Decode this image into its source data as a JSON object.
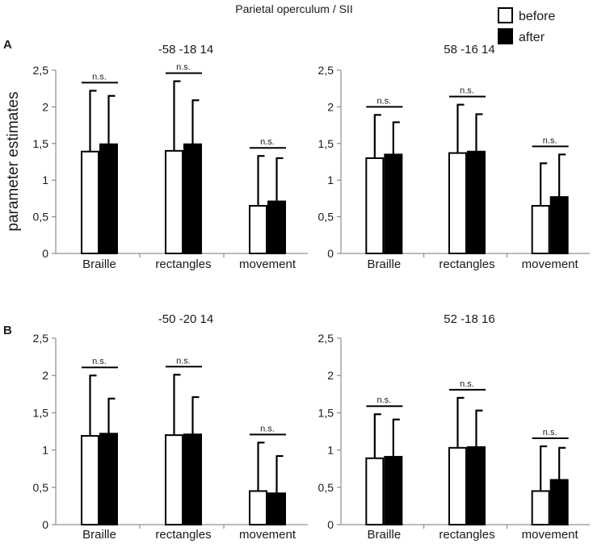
{
  "figure_title": "Parietal operculum / SII",
  "y_axis_label": "parameter estimates",
  "legend": [
    {
      "name": "before",
      "fill": "#ffffff"
    },
    {
      "name": "after",
      "fill": "#000000"
    }
  ],
  "panel_labels": [
    "A",
    "B"
  ],
  "colors": {
    "before": "#ffffff",
    "after": "#000000",
    "stroke": "#000000",
    "axis": "#777777"
  },
  "chart_data": [
    {
      "type": "bar",
      "panel": "A",
      "title": "-58 -18 14",
      "categories": [
        "Braille",
        "rectangles",
        "movement"
      ],
      "series": [
        {
          "name": "before",
          "values": [
            1.39,
            1.4,
            0.65
          ],
          "error_upper": [
            2.22,
            2.35,
            1.33
          ]
        },
        {
          "name": "after",
          "values": [
            1.49,
            1.49,
            0.71
          ],
          "error_upper": [
            2.15,
            2.09,
            1.3
          ]
        }
      ],
      "significance": [
        "n.s.",
        "n.s.",
        "n.s."
      ],
      "yticks": [
        "0",
        "0,5",
        "1",
        "1,5",
        "2",
        "2,5"
      ],
      "ylim": [
        0,
        2.5
      ]
    },
    {
      "type": "bar",
      "panel": "A",
      "title": "58 -16 14",
      "categories": [
        "Braille",
        "rectangles",
        "movement"
      ],
      "series": [
        {
          "name": "before",
          "values": [
            1.3,
            1.37,
            0.65
          ],
          "error_upper": [
            1.89,
            2.03,
            1.23
          ]
        },
        {
          "name": "after",
          "values": [
            1.35,
            1.39,
            0.77
          ],
          "error_upper": [
            1.79,
            1.9,
            1.35
          ]
        }
      ],
      "significance": [
        "n.s.",
        "n.s.",
        "n.s."
      ],
      "yticks": [
        "0",
        "0,5",
        "1",
        "1,5",
        "2",
        "2,5"
      ],
      "ylim": [
        0,
        2.5
      ]
    },
    {
      "type": "bar",
      "panel": "B",
      "title": "-50 -20 14",
      "categories": [
        "Braille",
        "rectangles",
        "movement"
      ],
      "series": [
        {
          "name": "before",
          "values": [
            1.19,
            1.2,
            0.45
          ],
          "error_upper": [
            2.0,
            2.01,
            1.1
          ]
        },
        {
          "name": "after",
          "values": [
            1.22,
            1.21,
            0.42
          ],
          "error_upper": [
            1.69,
            1.71,
            0.92
          ]
        }
      ],
      "significance": [
        "n.s.",
        "n.s.",
        "n.s."
      ],
      "yticks": [
        "0",
        "0,5",
        "1",
        "1,5",
        "2",
        "2,5"
      ],
      "ylim": [
        0,
        2.5
      ]
    },
    {
      "type": "bar",
      "panel": "B",
      "title": "52 -18 16",
      "categories": [
        "Braille",
        "rectangles",
        "movement"
      ],
      "series": [
        {
          "name": "before",
          "values": [
            0.89,
            1.03,
            0.45
          ],
          "error_upper": [
            1.48,
            1.7,
            1.05
          ]
        },
        {
          "name": "after",
          "values": [
            0.91,
            1.04,
            0.6
          ],
          "error_upper": [
            1.41,
            1.53,
            1.03
          ]
        }
      ],
      "significance": [
        "n.s.",
        "n.s.",
        "n.s."
      ],
      "yticks": [
        "0",
        "0,5",
        "1",
        "1,5",
        "2",
        "2,5"
      ],
      "ylim": [
        0,
        2.5
      ]
    }
  ]
}
